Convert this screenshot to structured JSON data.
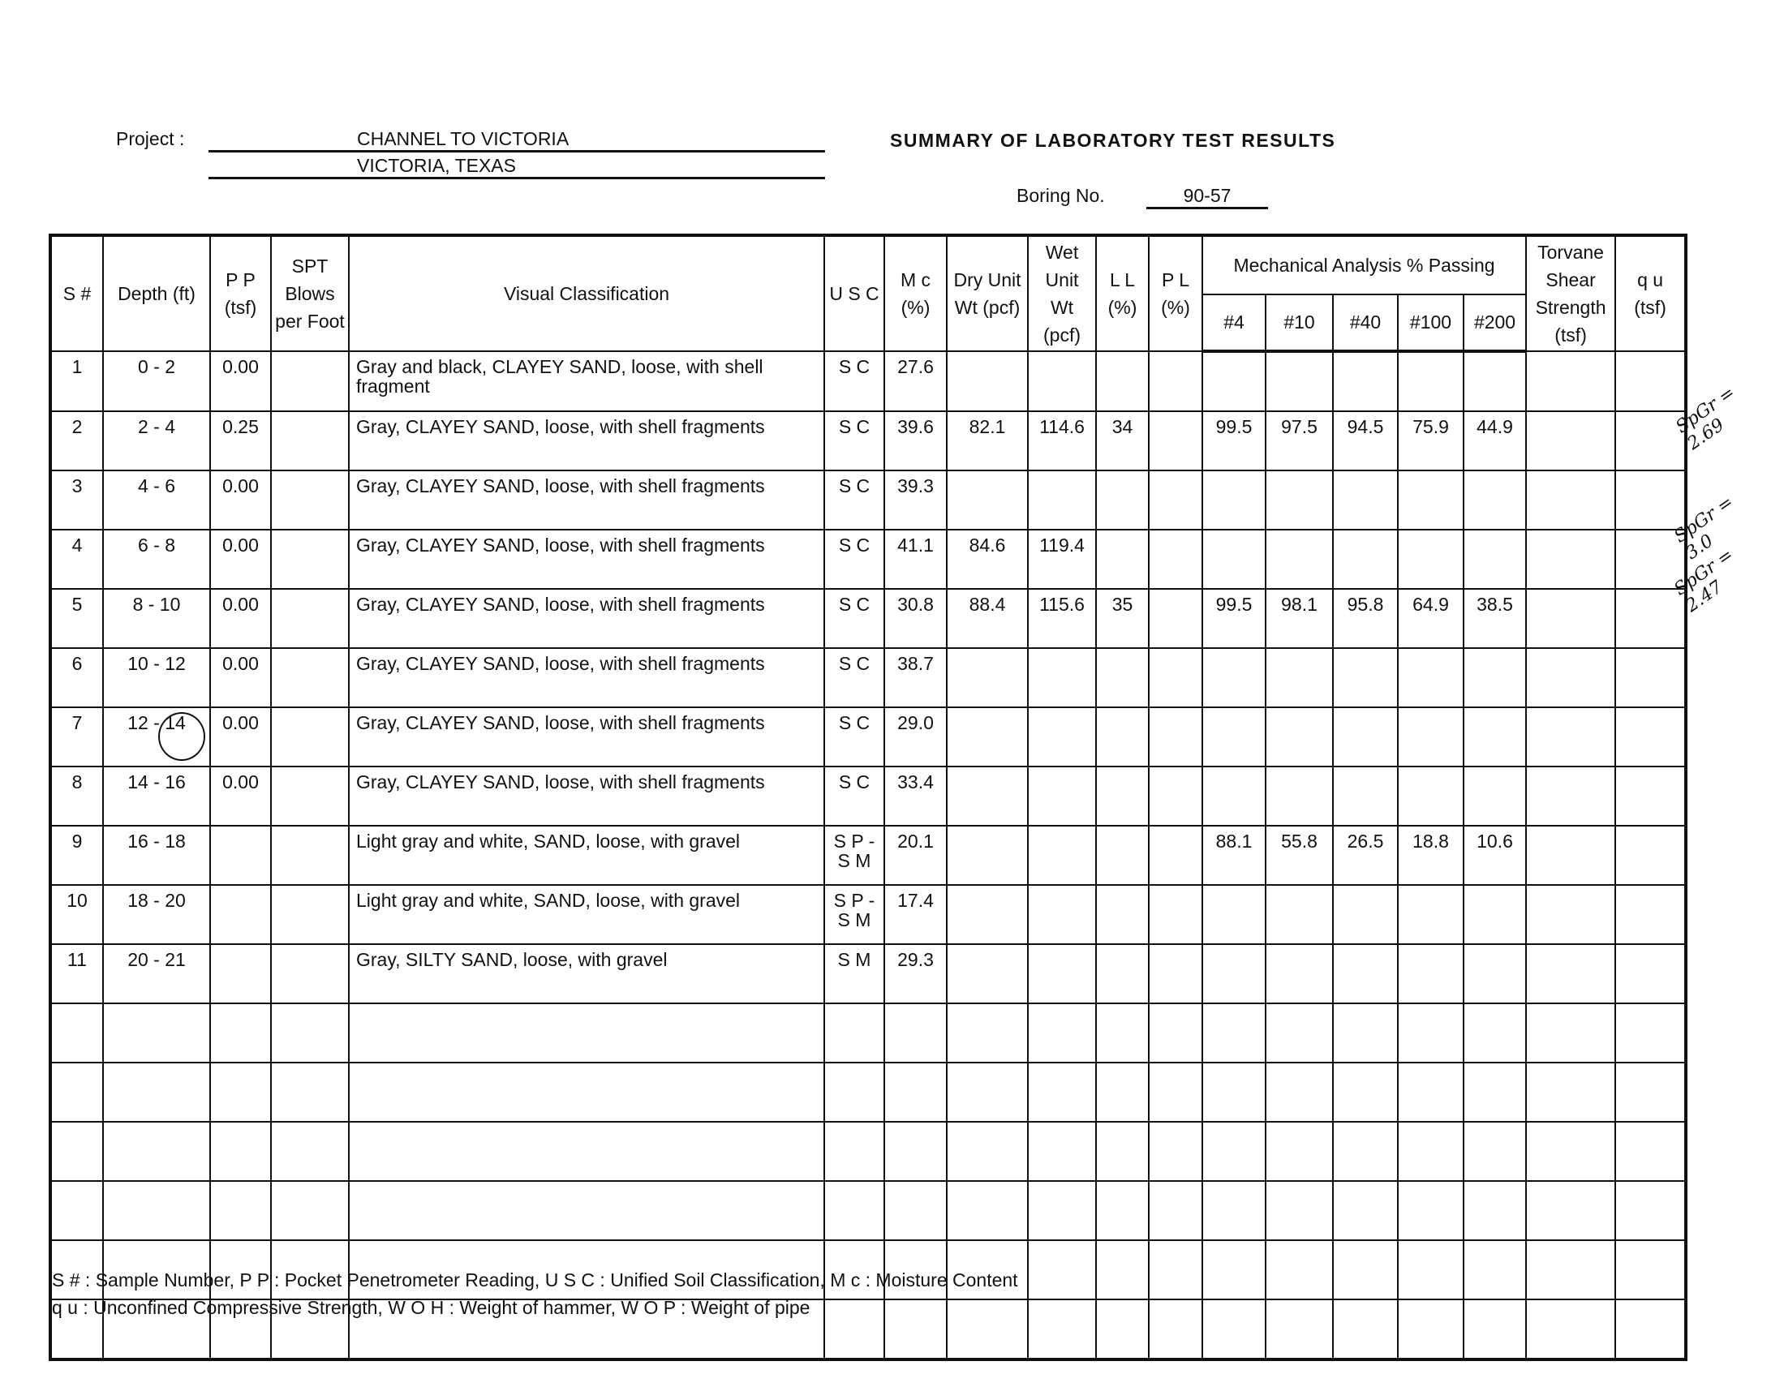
{
  "header": {
    "project_label": "Project :",
    "project_line1": "CHANNEL TO VICTORIA",
    "project_line2": "VICTORIA, TEXAS",
    "title": "SUMMARY OF LABORATORY TEST RESULTS",
    "boring_label": "Boring No.",
    "boring_no": "90-57"
  },
  "columns": {
    "s": "S #",
    "depth": "Depth (ft)",
    "pp": "P P (tsf)",
    "spt": "SPT Blows per Foot",
    "visual": "Visual Classification",
    "usc": "U S C",
    "mc": "M c (%)",
    "dry": "Dry Unit Wt (pcf)",
    "wet": "Wet Unit Wt (pcf)",
    "ll": "L L (%)",
    "pl": "P L (%)",
    "mech": "Mechanical Analysis % Passing",
    "sieves": [
      "#4",
      "#10",
      "#40",
      "#100",
      "#200"
    ],
    "torvane": "Torvane Shear Strength (tsf)",
    "qu": "q u (tsf)"
  },
  "rows": [
    {
      "s": "1",
      "depth": "0 - 2",
      "pp": "0.00",
      "spt": "",
      "desc": "Gray and black, CLAYEY SAND, loose, with shell fragment",
      "usc": "S C",
      "mc": "27.6",
      "dry": "",
      "wet": "",
      "ll": "",
      "pl": "",
      "p4": "",
      "p10": "",
      "p40": "",
      "p100": "",
      "p200": "",
      "tv": "",
      "qu": ""
    },
    {
      "s": "2",
      "depth": "2 - 4",
      "pp": "0.25",
      "spt": "",
      "desc": "Gray, CLAYEY SAND, loose, with shell fragments",
      "usc": "S C",
      "mc": "39.6",
      "dry": "82.1",
      "wet": "114.6",
      "ll": "34",
      "pl": "",
      "p4": "99.5",
      "p10": "97.5",
      "p40": "94.5",
      "p100": "75.9",
      "p200": "44.9",
      "tv": "",
      "qu": ""
    },
    {
      "s": "3",
      "depth": "4 - 6",
      "pp": "0.00",
      "spt": "",
      "desc": "Gray, CLAYEY SAND, loose, with shell fragments",
      "usc": "S C",
      "mc": "39.3",
      "dry": "",
      "wet": "",
      "ll": "",
      "pl": "",
      "p4": "",
      "p10": "",
      "p40": "",
      "p100": "",
      "p200": "",
      "tv": "",
      "qu": ""
    },
    {
      "s": "4",
      "depth": "6 - 8",
      "pp": "0.00",
      "spt": "",
      "desc": "Gray, CLAYEY SAND, loose, with shell fragments",
      "usc": "S C",
      "mc": "41.1",
      "dry": "84.6",
      "wet": "119.4",
      "ll": "",
      "pl": "",
      "p4": "",
      "p10": "",
      "p40": "",
      "p100": "",
      "p200": "",
      "tv": "",
      "qu": ""
    },
    {
      "s": "5",
      "depth": "8 - 10",
      "pp": "0.00",
      "spt": "",
      "desc": "Gray, CLAYEY SAND, loose, with shell fragments",
      "usc": "S C",
      "mc": "30.8",
      "dry": "88.4",
      "wet": "115.6",
      "ll": "35",
      "pl": "",
      "p4": "99.5",
      "p10": "98.1",
      "p40": "95.8",
      "p100": "64.9",
      "p200": "38.5",
      "tv": "",
      "qu": ""
    },
    {
      "s": "6",
      "depth": "10 - 12",
      "pp": "0.00",
      "spt": "",
      "desc": "Gray, CLAYEY SAND, loose, with shell fragments",
      "usc": "S C",
      "mc": "38.7",
      "dry": "",
      "wet": "",
      "ll": "",
      "pl": "",
      "p4": "",
      "p10": "",
      "p40": "",
      "p100": "",
      "p200": "",
      "tv": "",
      "qu": ""
    },
    {
      "s": "7",
      "depth": "12 - 14",
      "pp": "0.00",
      "spt": "",
      "desc": "Gray, CLAYEY SAND, loose, with shell fragments",
      "usc": "S C",
      "mc": "29.0",
      "dry": "",
      "wet": "",
      "ll": "",
      "pl": "",
      "p4": "",
      "p10": "",
      "p40": "",
      "p100": "",
      "p200": "",
      "tv": "",
      "qu": ""
    },
    {
      "s": "8",
      "depth": "14 - 16",
      "pp": "0.00",
      "spt": "",
      "desc": "Gray, CLAYEY SAND, loose, with shell fragments",
      "usc": "S C",
      "mc": "33.4",
      "dry": "",
      "wet": "",
      "ll": "",
      "pl": "",
      "p4": "",
      "p10": "",
      "p40": "",
      "p100": "",
      "p200": "",
      "tv": "",
      "qu": ""
    },
    {
      "s": "9",
      "depth": "16 - 18",
      "pp": "",
      "spt": "",
      "desc": "Light gray and white, SAND, loose, with gravel",
      "usc": "S P - S M",
      "mc": "20.1",
      "dry": "",
      "wet": "",
      "ll": "",
      "pl": "",
      "p4": "88.1",
      "p10": "55.8",
      "p40": "26.5",
      "p100": "18.8",
      "p200": "10.6",
      "tv": "",
      "qu": ""
    },
    {
      "s": "10",
      "depth": "18 - 20",
      "pp": "",
      "spt": "",
      "desc": "Light gray and white, SAND, loose, with gravel",
      "usc": "S P - S M",
      "mc": "17.4",
      "dry": "",
      "wet": "",
      "ll": "",
      "pl": "",
      "p4": "",
      "p10": "",
      "p40": "",
      "p100": "",
      "p200": "",
      "tv": "",
      "qu": ""
    },
    {
      "s": "11",
      "depth": "20 - 21",
      "pp": "",
      "spt": "",
      "desc": "Gray, SILTY SAND, loose, with gravel",
      "usc": "S M",
      "mc": "29.3",
      "dry": "",
      "wet": "",
      "ll": "",
      "pl": "",
      "p4": "",
      "p10": "",
      "p40": "",
      "p100": "",
      "p200": "",
      "tv": "",
      "qu": ""
    }
  ],
  "empty_rows": 6,
  "handwritten_notes": [
    "SpGr = 2.69",
    "SpGr = 3.0",
    "SpGr = 2.47"
  ],
  "footnotes": [
    "S # : Sample Number, P P : Pocket Penetrometer Reading, U S C : Unified Soil Classification, M c : Moisture Content",
    "q u : Unconfined Compressive Strength, W O H : Weight of hammer, W O P : Weight of pipe"
  ]
}
